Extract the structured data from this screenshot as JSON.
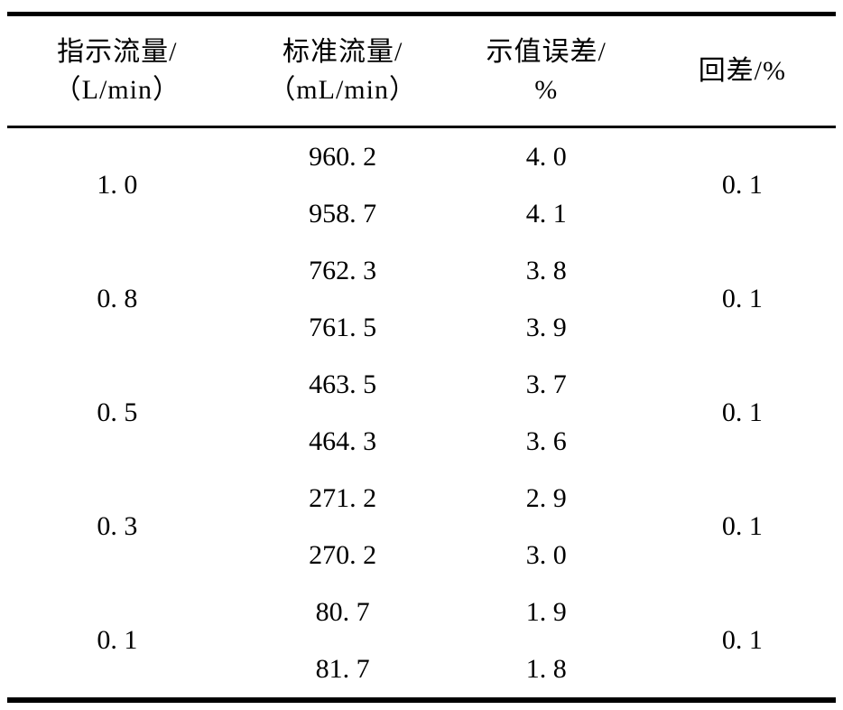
{
  "table": {
    "columns": [
      {
        "line1": "指示流量/",
        "line2": "（L/min）"
      },
      {
        "line1": "标准流量/",
        "line2": "（mL/min）"
      },
      {
        "line1": "示值误差/",
        "line2": "%"
      },
      {
        "line1": "回差/%",
        "line2": ""
      }
    ],
    "rows": [
      {
        "indicated": "1. 0",
        "standard": [
          "960. 2",
          "958. 7"
        ],
        "error": [
          "4. 0",
          "4. 1"
        ],
        "hysteresis": "0. 1"
      },
      {
        "indicated": "0. 8",
        "standard": [
          "762. 3",
          "761. 5"
        ],
        "error": [
          "3. 8",
          "3. 9"
        ],
        "hysteresis": "0. 1"
      },
      {
        "indicated": "0. 5",
        "standard": [
          "463. 5",
          "464. 3"
        ],
        "error": [
          "3. 7",
          "3. 6"
        ],
        "hysteresis": "0. 1"
      },
      {
        "indicated": "0. 3",
        "standard": [
          "271. 2",
          "270. 2"
        ],
        "error": [
          "2. 9",
          "3. 0"
        ],
        "hysteresis": "0. 1"
      },
      {
        "indicated": "0. 1",
        "standard": [
          "80. 7",
          "81. 7"
        ],
        "error": [
          "1. 9",
          "1. 8"
        ],
        "hysteresis": "0. 1"
      }
    ],
    "colors": {
      "text": "#000000",
      "background": "#ffffff",
      "rule": "#000000"
    }
  }
}
